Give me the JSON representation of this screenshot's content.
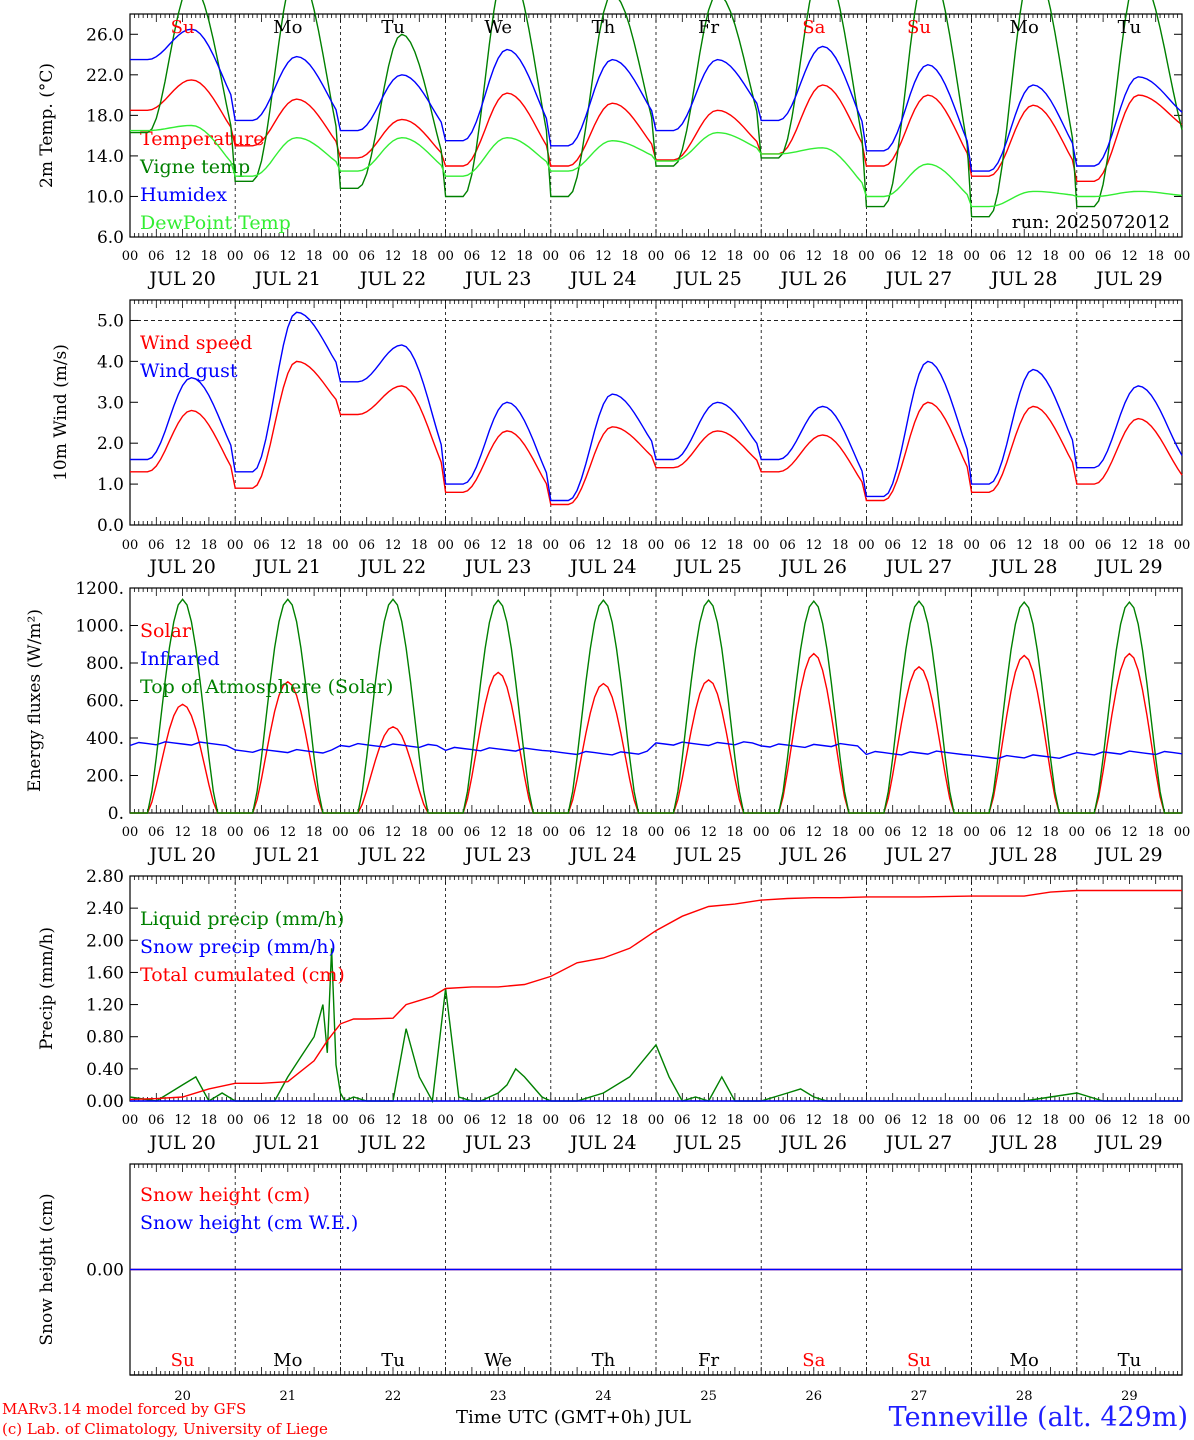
{
  "meta": {
    "run_label": "run: 2025072012",
    "x_axis_title": "Time UTC (GMT+0h) JUL",
    "station": "Tenneville (alt. 429m)",
    "credit_line_1": "MARv3.14 model forced by GFS",
    "credit_line_2": "(c) Lab. of Climatology, University of Liege"
  },
  "colors": {
    "red": "#ff0000",
    "green": "#008000",
    "blue": "#0000ff",
    "lightgreen": "#33ee33",
    "station": "#1f1fff"
  },
  "days": {
    "weekdays": [
      "Su",
      "Mo",
      "Tu",
      "We",
      "Th",
      "Fr",
      "Sa",
      "Su",
      "Mo",
      "Tu"
    ],
    "weekday_colors": [
      "red",
      "black",
      "black",
      "black",
      "black",
      "black",
      "red",
      "red",
      "black",
      "black"
    ],
    "date_labels": [
      "JUL 20",
      "JUL 21",
      "JUL 22",
      "JUL 23",
      "JUL 24",
      "JUL 25",
      "JUL 26",
      "JUL 27",
      "JUL 28",
      "JUL 29"
    ],
    "day_numbers": [
      "20",
      "21",
      "22",
      "23",
      "24",
      "25",
      "26",
      "27",
      "28",
      "29"
    ],
    "hour_labels": [
      "00",
      "06",
      "12",
      "18"
    ],
    "hour_label_end": "00"
  },
  "chart_data": [
    {
      "type": "line",
      "ylabel": "2m Temp. (°C)",
      "ylim": [
        6,
        28
      ],
      "yticks": [
        "6.0",
        "10.0",
        "14.0",
        "18.0",
        "22.0",
        "26.0"
      ],
      "grid": "vertical dashed at day boundaries",
      "show_weekdays": true,
      "show_run": true,
      "series": [
        {
          "name": "Temperature",
          "color": "red",
          "kind": "diurnal",
          "min": [
            18.5,
            15.0,
            13.8,
            13.0,
            13.0,
            13.6,
            14.2,
            13.0,
            12.0,
            11.5
          ],
          "max": [
            21.5,
            19.6,
            17.6,
            20.2,
            19.2,
            18.5,
            21.0,
            20.0,
            19.0,
            20.0
          ],
          "end": 16.4
        },
        {
          "name": "Vigne temp",
          "color": "green",
          "kind": "diurnal",
          "min": [
            16.3,
            11.5,
            10.8,
            10.0,
            10.0,
            13.0,
            13.8,
            9.0,
            8.0,
            9.0
          ],
          "max": [
            31.0,
            32.5,
            26.0,
            33.0,
            30.0,
            30.0,
            33.0,
            33.0,
            33.0,
            32.0
          ],
          "end": 13.0
        },
        {
          "name": "Humidex",
          "color": "blue",
          "kind": "diurnal",
          "min": [
            23.5,
            17.5,
            16.5,
            15.5,
            15.0,
            16.5,
            17.5,
            14.5,
            12.5,
            13.0
          ],
          "max": [
            26.5,
            23.8,
            22.0,
            24.5,
            23.5,
            23.5,
            24.8,
            23.0,
            21.0,
            21.8
          ],
          "end": 17.5
        },
        {
          "name": "DewPoint Temp",
          "color": "lightgreen",
          "kind": "diurnal",
          "min": [
            16.5,
            12.0,
            12.5,
            12.0,
            12.5,
            13.5,
            14.2,
            10.0,
            9.0,
            10.0
          ],
          "max": [
            17.0,
            15.8,
            15.8,
            15.8,
            15.5,
            16.3,
            14.8,
            13.2,
            10.5,
            10.5
          ],
          "end": 10.0
        }
      ]
    },
    {
      "type": "line",
      "ylabel": "10m Wind (m/s)",
      "ylim": [
        0,
        5.5
      ],
      "yticks": [
        "0.0",
        "1.0",
        "2.0",
        "3.0",
        "4.0",
        "5.0"
      ],
      "dashed_hline": 5.0,
      "series": [
        {
          "name": "Wind speed",
          "color": "red",
          "kind": "diurnal",
          "min": [
            1.3,
            0.9,
            2.7,
            0.8,
            0.5,
            1.4,
            1.3,
            0.6,
            0.8,
            1.0
          ],
          "max": [
            2.8,
            4.0,
            3.4,
            2.3,
            2.4,
            2.3,
            2.2,
            3.0,
            2.9,
            2.6
          ],
          "end": 0.9
        },
        {
          "name": "Wind gust",
          "color": "blue",
          "kind": "diurnal",
          "min": [
            1.6,
            1.3,
            3.5,
            1.0,
            0.6,
            1.6,
            1.6,
            0.7,
            1.0,
            1.4
          ],
          "max": [
            3.6,
            5.2,
            4.4,
            3.0,
            3.2,
            3.0,
            2.9,
            4.0,
            3.8,
            3.4
          ],
          "end": 1.3
        }
      ]
    },
    {
      "type": "line",
      "ylabel": "Energy fluxes (W/m²)",
      "ylim": [
        0,
        1200
      ],
      "yticks": [
        "0.",
        "200.",
        "400.",
        "600.",
        "800.",
        "1000.",
        "1200."
      ],
      "series": [
        {
          "name": "Solar",
          "color": "red",
          "kind": "sun",
          "peak": [
            580,
            700,
            460,
            750,
            690,
            710,
            850,
            780,
            840,
            850
          ]
        },
        {
          "name": "Infrared",
          "color": "blue",
          "kind": "ir",
          "level": [
            370,
            330,
            360,
            340,
            320,
            370,
            360,
            320,
            300,
            320
          ]
        },
        {
          "name": "Top of Atmosphere (Solar)",
          "color": "green",
          "kind": "sun",
          "peak": [
            1140,
            1140,
            1140,
            1135,
            1135,
            1135,
            1130,
            1130,
            1125,
            1125
          ]
        }
      ]
    },
    {
      "type": "line",
      "ylabel": "Precip (mm/h)",
      "ylim": [
        0,
        2.8
      ],
      "yticks": [
        "0.00",
        "0.40",
        "0.80",
        "1.20",
        "1.60",
        "2.00",
        "2.40",
        "2.80"
      ],
      "series": [
        {
          "name": "Liquid precip (mm/h)",
          "color": "green",
          "kind": "points",
          "x": [
            0,
            6,
            9,
            12,
            15,
            18,
            21,
            24,
            30,
            33,
            36,
            39,
            42,
            44,
            45,
            46,
            47,
            48,
            49,
            51,
            54,
            57,
            60,
            63,
            66,
            69,
            72,
            75,
            78,
            79,
            80,
            82,
            84,
            86,
            88,
            90,
            94,
            96,
            100,
            102,
            108,
            114,
            117,
            120,
            123,
            126,
            129,
            132,
            135,
            138,
            144,
            150,
            153,
            156,
            159,
            162,
            165,
            168,
            174,
            180,
            186,
            192,
            198,
            204,
            210,
            216,
            222,
            228,
            234,
            240
          ],
          "y": [
            0.05,
            0.0,
            0.1,
            0.2,
            0.3,
            0.0,
            0.1,
            0.0,
            0.0,
            0.0,
            0.3,
            0.55,
            0.8,
            1.2,
            0.6,
            1.9,
            0.45,
            0.1,
            0.0,
            0.05,
            0.0,
            0.0,
            0.0,
            0.9,
            0.3,
            0.0,
            1.4,
            0.05,
            0.0,
            0.0,
            0.0,
            0.05,
            0.1,
            0.2,
            0.4,
            0.3,
            0.05,
            0.0,
            0.0,
            0.0,
            0.1,
            0.3,
            0.5,
            0.7,
            0.3,
            0.0,
            0.05,
            0.0,
            0.3,
            0.0,
            0.0,
            0.1,
            0.15,
            0.05,
            0.0,
            0.0,
            0.0,
            0.0,
            0.0,
            0.0,
            0.0,
            0.0,
            0.0,
            0.0,
            0.05,
            0.1,
            0.0,
            0.0,
            0.0,
            0.0
          ]
        },
        {
          "name": "Snow precip (mm/h)",
          "color": "blue",
          "kind": "flat",
          "value": 0.0
        },
        {
          "name": "Total cumulated (cm)",
          "color": "red",
          "kind": "points",
          "x": [
            0,
            6,
            12,
            18,
            24,
            30,
            36,
            42,
            45,
            48,
            51,
            54,
            60,
            63,
            66,
            69,
            72,
            78,
            84,
            90,
            96,
            102,
            108,
            114,
            120,
            126,
            132,
            138,
            144,
            150,
            156,
            162,
            168,
            180,
            192,
            204,
            216,
            204,
            210,
            216,
            222,
            228,
            234,
            240
          ],
          "y": [
            0.02,
            0.03,
            0.05,
            0.15,
            0.22,
            0.22,
            0.24,
            0.5,
            0.75,
            0.96,
            1.02,
            1.02,
            1.03,
            1.2,
            1.25,
            1.3,
            1.4,
            1.42,
            1.42,
            1.45,
            1.55,
            1.72,
            1.78,
            1.9,
            2.12,
            2.3,
            2.42,
            2.45,
            2.5,
            2.52,
            2.53,
            2.53,
            2.54,
            2.54,
            2.55,
            2.55,
            2.62,
            2.55,
            2.6,
            2.62,
            2.62,
            2.62,
            2.62,
            2.62
          ]
        }
      ]
    },
    {
      "type": "line",
      "ylabel": "Snow height (cm)",
      "ylim": [
        -1,
        1
      ],
      "yticks": [
        "0.00"
      ],
      "series": [
        {
          "name": "Snow height (cm)",
          "color": "red",
          "kind": "flat",
          "value": 0.0
        },
        {
          "name": "Snow height (cm W.E.)",
          "color": "blue",
          "kind": "flat",
          "value": 0.0
        }
      ]
    }
  ]
}
